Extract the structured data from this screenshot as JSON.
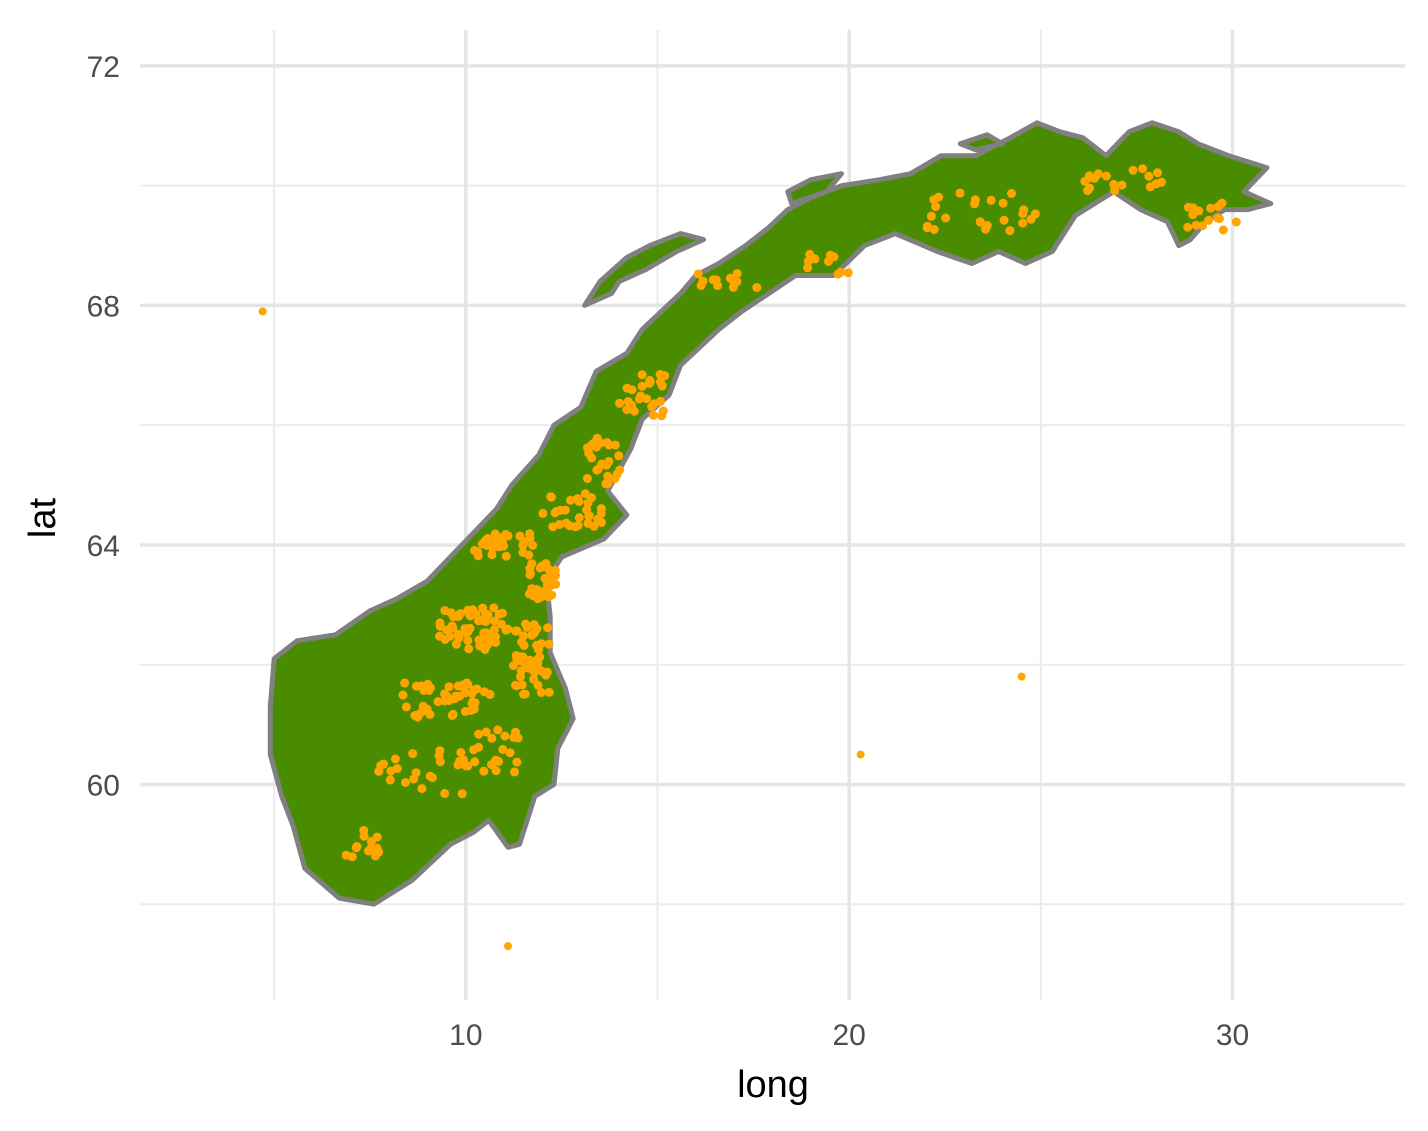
{
  "chart_data": {
    "type": "scatter",
    "subtype": "map-with-points",
    "title": "",
    "xlabel": "long",
    "ylabel": "lat",
    "xlim": [
      1.5,
      34.5
    ],
    "ylim": [
      56.4,
      72.6
    ],
    "x_ticks": [
      10,
      20,
      30
    ],
    "y_ticks": [
      60,
      64,
      68,
      72
    ],
    "x_minor_grid": [
      5,
      15,
      25
    ],
    "y_minor_grid": [
      58,
      62,
      66,
      70
    ],
    "grid": true,
    "legend": "none",
    "land_fill_color": "#4a8c00",
    "land_outline_color": "#808080",
    "point_color": "#ffa500",
    "map_outline": {
      "mainland": [
        [
          4.9,
          61.3
        ],
        [
          5.0,
          62.1
        ],
        [
          5.6,
          62.4
        ],
        [
          6.6,
          62.5
        ],
        [
          7.5,
          62.9
        ],
        [
          8.2,
          63.1
        ],
        [
          9.0,
          63.4
        ],
        [
          9.6,
          63.8
        ],
        [
          10.2,
          64.2
        ],
        [
          10.8,
          64.6
        ],
        [
          11.2,
          65.0
        ],
        [
          11.9,
          65.5
        ],
        [
          12.3,
          66.0
        ],
        [
          13.0,
          66.3
        ],
        [
          13.4,
          66.9
        ],
        [
          14.2,
          67.2
        ],
        [
          14.6,
          67.6
        ],
        [
          15.1,
          67.9
        ],
        [
          15.6,
          68.2
        ],
        [
          16.0,
          68.5
        ],
        [
          16.6,
          68.7
        ],
        [
          17.3,
          69.0
        ],
        [
          17.9,
          69.3
        ],
        [
          18.4,
          69.6
        ],
        [
          19.0,
          69.8
        ],
        [
          19.8,
          70.0
        ],
        [
          20.8,
          70.1
        ],
        [
          21.6,
          70.2
        ],
        [
          22.4,
          70.5
        ],
        [
          23.3,
          70.5
        ],
        [
          24.2,
          70.8
        ],
        [
          24.9,
          71.05
        ],
        [
          25.5,
          70.9
        ],
        [
          26.1,
          70.8
        ],
        [
          26.7,
          70.5
        ],
        [
          27.3,
          70.9
        ],
        [
          27.9,
          71.05
        ],
        [
          28.6,
          70.9
        ],
        [
          29.1,
          70.7
        ],
        [
          29.9,
          70.5
        ],
        [
          30.9,
          70.3
        ],
        [
          30.3,
          69.9
        ],
        [
          31.0,
          69.7
        ],
        [
          30.4,
          69.6
        ],
        [
          29.8,
          69.6
        ],
        [
          29.3,
          69.4
        ],
        [
          28.9,
          69.1
        ],
        [
          28.6,
          69.0
        ],
        [
          28.3,
          69.4
        ],
        [
          27.6,
          69.6
        ],
        [
          26.9,
          69.9
        ],
        [
          26.4,
          69.7
        ],
        [
          25.9,
          69.5
        ],
        [
          25.3,
          68.9
        ],
        [
          24.6,
          68.7
        ],
        [
          23.9,
          68.9
        ],
        [
          23.2,
          68.7
        ],
        [
          22.3,
          68.9
        ],
        [
          21.2,
          69.2
        ],
        [
          20.4,
          69.0
        ],
        [
          19.6,
          68.5
        ],
        [
          18.6,
          68.5
        ],
        [
          17.9,
          68.2
        ],
        [
          17.2,
          67.9
        ],
        [
          16.6,
          67.6
        ],
        [
          16.1,
          67.3
        ],
        [
          15.6,
          67.0
        ],
        [
          15.3,
          66.5
        ],
        [
          14.6,
          66.1
        ],
        [
          14.3,
          65.6
        ],
        [
          13.7,
          64.9
        ],
        [
          14.2,
          64.5
        ],
        [
          13.6,
          64.1
        ],
        [
          12.5,
          63.8
        ],
        [
          12.1,
          63.4
        ],
        [
          12.2,
          62.8
        ],
        [
          12.2,
          62.2
        ],
        [
          12.6,
          61.6
        ],
        [
          12.8,
          61.1
        ],
        [
          12.4,
          60.6
        ],
        [
          12.3,
          60.0
        ],
        [
          11.8,
          59.8
        ],
        [
          11.4,
          59.0
        ],
        [
          11.1,
          58.95
        ],
        [
          10.6,
          59.4
        ],
        [
          10.2,
          59.2
        ],
        [
          9.6,
          59.0
        ],
        [
          8.6,
          58.4
        ],
        [
          7.6,
          58.0
        ],
        [
          6.7,
          58.1
        ],
        [
          5.8,
          58.6
        ],
        [
          5.5,
          59.3
        ],
        [
          5.2,
          59.8
        ],
        [
          4.9,
          60.5
        ]
      ],
      "islands": [
        [
          [
            14.0,
            68.4
          ],
          [
            14.7,
            68.6
          ],
          [
            15.5,
            68.9
          ],
          [
            16.2,
            69.1
          ],
          [
            15.6,
            69.2
          ],
          [
            14.8,
            69.0
          ],
          [
            14.2,
            68.8
          ],
          [
            13.5,
            68.4
          ],
          [
            13.1,
            68.0
          ],
          [
            13.8,
            68.2
          ]
        ],
        [
          [
            18.5,
            69.7
          ],
          [
            19.4,
            69.9
          ],
          [
            19.8,
            70.2
          ],
          [
            19.0,
            70.1
          ],
          [
            18.4,
            69.9
          ]
        ],
        [
          [
            23.3,
            70.6
          ],
          [
            24.0,
            70.7
          ],
          [
            23.6,
            70.85
          ],
          [
            22.9,
            70.7
          ]
        ]
      ]
    },
    "points": {
      "note": "orange point cloud concentrated inside mainland",
      "outliers": [
        [
          4.7,
          67.9
        ],
        [
          11.1,
          57.3
        ],
        [
          20.3,
          60.5
        ],
        [
          24.5,
          61.8
        ]
      ],
      "clusters": [
        {
          "center": [
            10.2,
            62.6
          ],
          "count": 60,
          "spread": [
            0.9,
            0.35
          ]
        },
        {
          "center": [
            11.7,
            62.1
          ],
          "count": 50,
          "spread": [
            0.5,
            0.6
          ]
        },
        {
          "center": [
            9.5,
            61.4
          ],
          "count": 45,
          "spread": [
            1.2,
            0.3
          ]
        },
        {
          "center": [
            12.0,
            63.4
          ],
          "count": 35,
          "spread": [
            0.35,
            0.3
          ]
        },
        {
          "center": [
            11.0,
            64.0
          ],
          "count": 30,
          "spread": [
            0.8,
            0.2
          ]
        },
        {
          "center": [
            12.8,
            64.6
          ],
          "count": 30,
          "spread": [
            0.8,
            0.3
          ]
        },
        {
          "center": [
            13.6,
            65.4
          ],
          "count": 25,
          "spread": [
            0.5,
            0.4
          ]
        },
        {
          "center": [
            14.6,
            66.5
          ],
          "count": 25,
          "spread": [
            0.6,
            0.35
          ]
        },
        {
          "center": [
            8.8,
            60.2
          ],
          "count": 25,
          "spread": [
            1.3,
            0.4
          ]
        },
        {
          "center": [
            7.3,
            59.0
          ],
          "count": 15,
          "spread": [
            0.5,
            0.25
          ]
        },
        {
          "center": [
            10.8,
            60.6
          ],
          "count": 20,
          "spread": [
            0.6,
            0.4
          ]
        },
        {
          "center": [
            16.9,
            68.4
          ],
          "count": 12,
          "spread": [
            0.9,
            0.15
          ]
        },
        {
          "center": [
            19.5,
            68.7
          ],
          "count": 10,
          "spread": [
            0.6,
            0.2
          ]
        },
        {
          "center": [
            23.5,
            69.6
          ],
          "count": 25,
          "spread": [
            1.5,
            0.35
          ]
        },
        {
          "center": [
            27.0,
            70.1
          ],
          "count": 18,
          "spread": [
            1.2,
            0.2
          ]
        },
        {
          "center": [
            29.5,
            69.5
          ],
          "count": 15,
          "spread": [
            0.7,
            0.25
          ]
        }
      ]
    }
  }
}
